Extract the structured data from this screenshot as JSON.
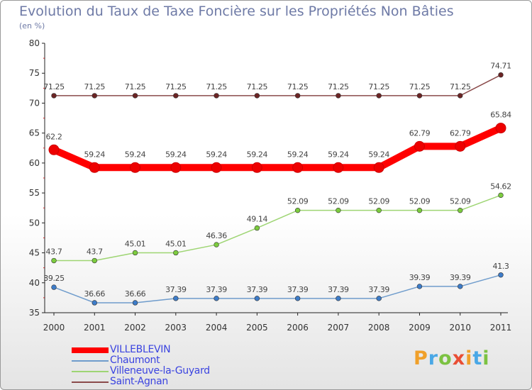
{
  "title": "Evolution du Taux de Taxe Foncière sur les Propriétés Non Bâties",
  "subtitle": "(en %)",
  "logo": {
    "text": "Proxiti",
    "letters": [
      {
        "char": "P",
        "color": "#f0a02a"
      },
      {
        "char": "r",
        "color": "#4aa8e6"
      },
      {
        "char": "o",
        "color": "#7cc242"
      },
      {
        "char": "x",
        "color": "#e94e34"
      },
      {
        "char": "i",
        "color": "#f0a02a"
      },
      {
        "char": "t",
        "color": "#4aa8e6"
      },
      {
        "char": "i",
        "color": "#7cc242"
      }
    ]
  },
  "chart_data": {
    "type": "line",
    "title": "Evolution du Taux de Taxe Foncière sur les Propriétés Non Bâties",
    "ylabel": "(en %)",
    "xlabel": "",
    "ylim": [
      35,
      80
    ],
    "yticks": [
      35,
      40,
      45,
      50,
      55,
      60,
      65,
      70,
      75,
      80
    ],
    "grid": false,
    "legend_position": "bottom-left",
    "x": [
      "2000",
      "2001",
      "2002",
      "2003",
      "2004",
      "2005",
      "2006",
      "2007",
      "2008",
      "2009",
      "2010",
      "2011"
    ],
    "series": [
      {
        "name": "VILLEBLEVIN",
        "color": "#ff0000",
        "marker": "#ee0000",
        "emphasis": true,
        "values": [
          62.2,
          59.24,
          59.24,
          59.24,
          59.24,
          59.24,
          59.24,
          59.24,
          59.24,
          62.79,
          62.79,
          65.84
        ],
        "labels": [
          "62.2",
          "59.24",
          "59.24",
          "59.24",
          "59.24",
          "59.24",
          "59.24",
          "59.24",
          "59.24",
          "62.79",
          "62.79",
          "65.84"
        ]
      },
      {
        "name": "Chaumont",
        "color": "#6f9ccc",
        "marker": "#3d7cc9",
        "emphasis": false,
        "values": [
          39.25,
          36.66,
          36.66,
          37.39,
          37.39,
          37.39,
          37.39,
          37.39,
          37.39,
          39.39,
          39.39,
          41.3
        ],
        "labels": [
          "39.25",
          "36.66",
          "36.66",
          "37.39",
          "37.39",
          "37.39",
          "37.39",
          "37.39",
          "37.39",
          "39.39",
          "39.39",
          "41.3"
        ]
      },
      {
        "name": "Villeneuve-la-Guyard",
        "color": "#9ed573",
        "marker": "#7ccc3e",
        "emphasis": false,
        "values": [
          43.7,
          43.7,
          45.01,
          45.01,
          46.36,
          49.14,
          52.09,
          52.09,
          52.09,
          52.09,
          52.09,
          54.62
        ],
        "labels": [
          "43.7",
          "43.7",
          "45.01",
          "45.01",
          "46.36",
          "49.14",
          "52.09",
          "52.09",
          "52.09",
          "52.09",
          "52.09",
          "54.62"
        ]
      },
      {
        "name": "Saint-Agnan",
        "color": "#8a4a4a",
        "marker": "#6b2424",
        "emphasis": false,
        "values": [
          71.25,
          71.25,
          71.25,
          71.25,
          71.25,
          71.25,
          71.25,
          71.25,
          71.25,
          71.25,
          71.25,
          74.71
        ],
        "labels": [
          "71.25",
          "71.25",
          "71.25",
          "71.25",
          "71.25",
          "71.25",
          "71.25",
          "71.25",
          "71.25",
          "71.25",
          "71.25",
          "74.71"
        ]
      }
    ]
  }
}
